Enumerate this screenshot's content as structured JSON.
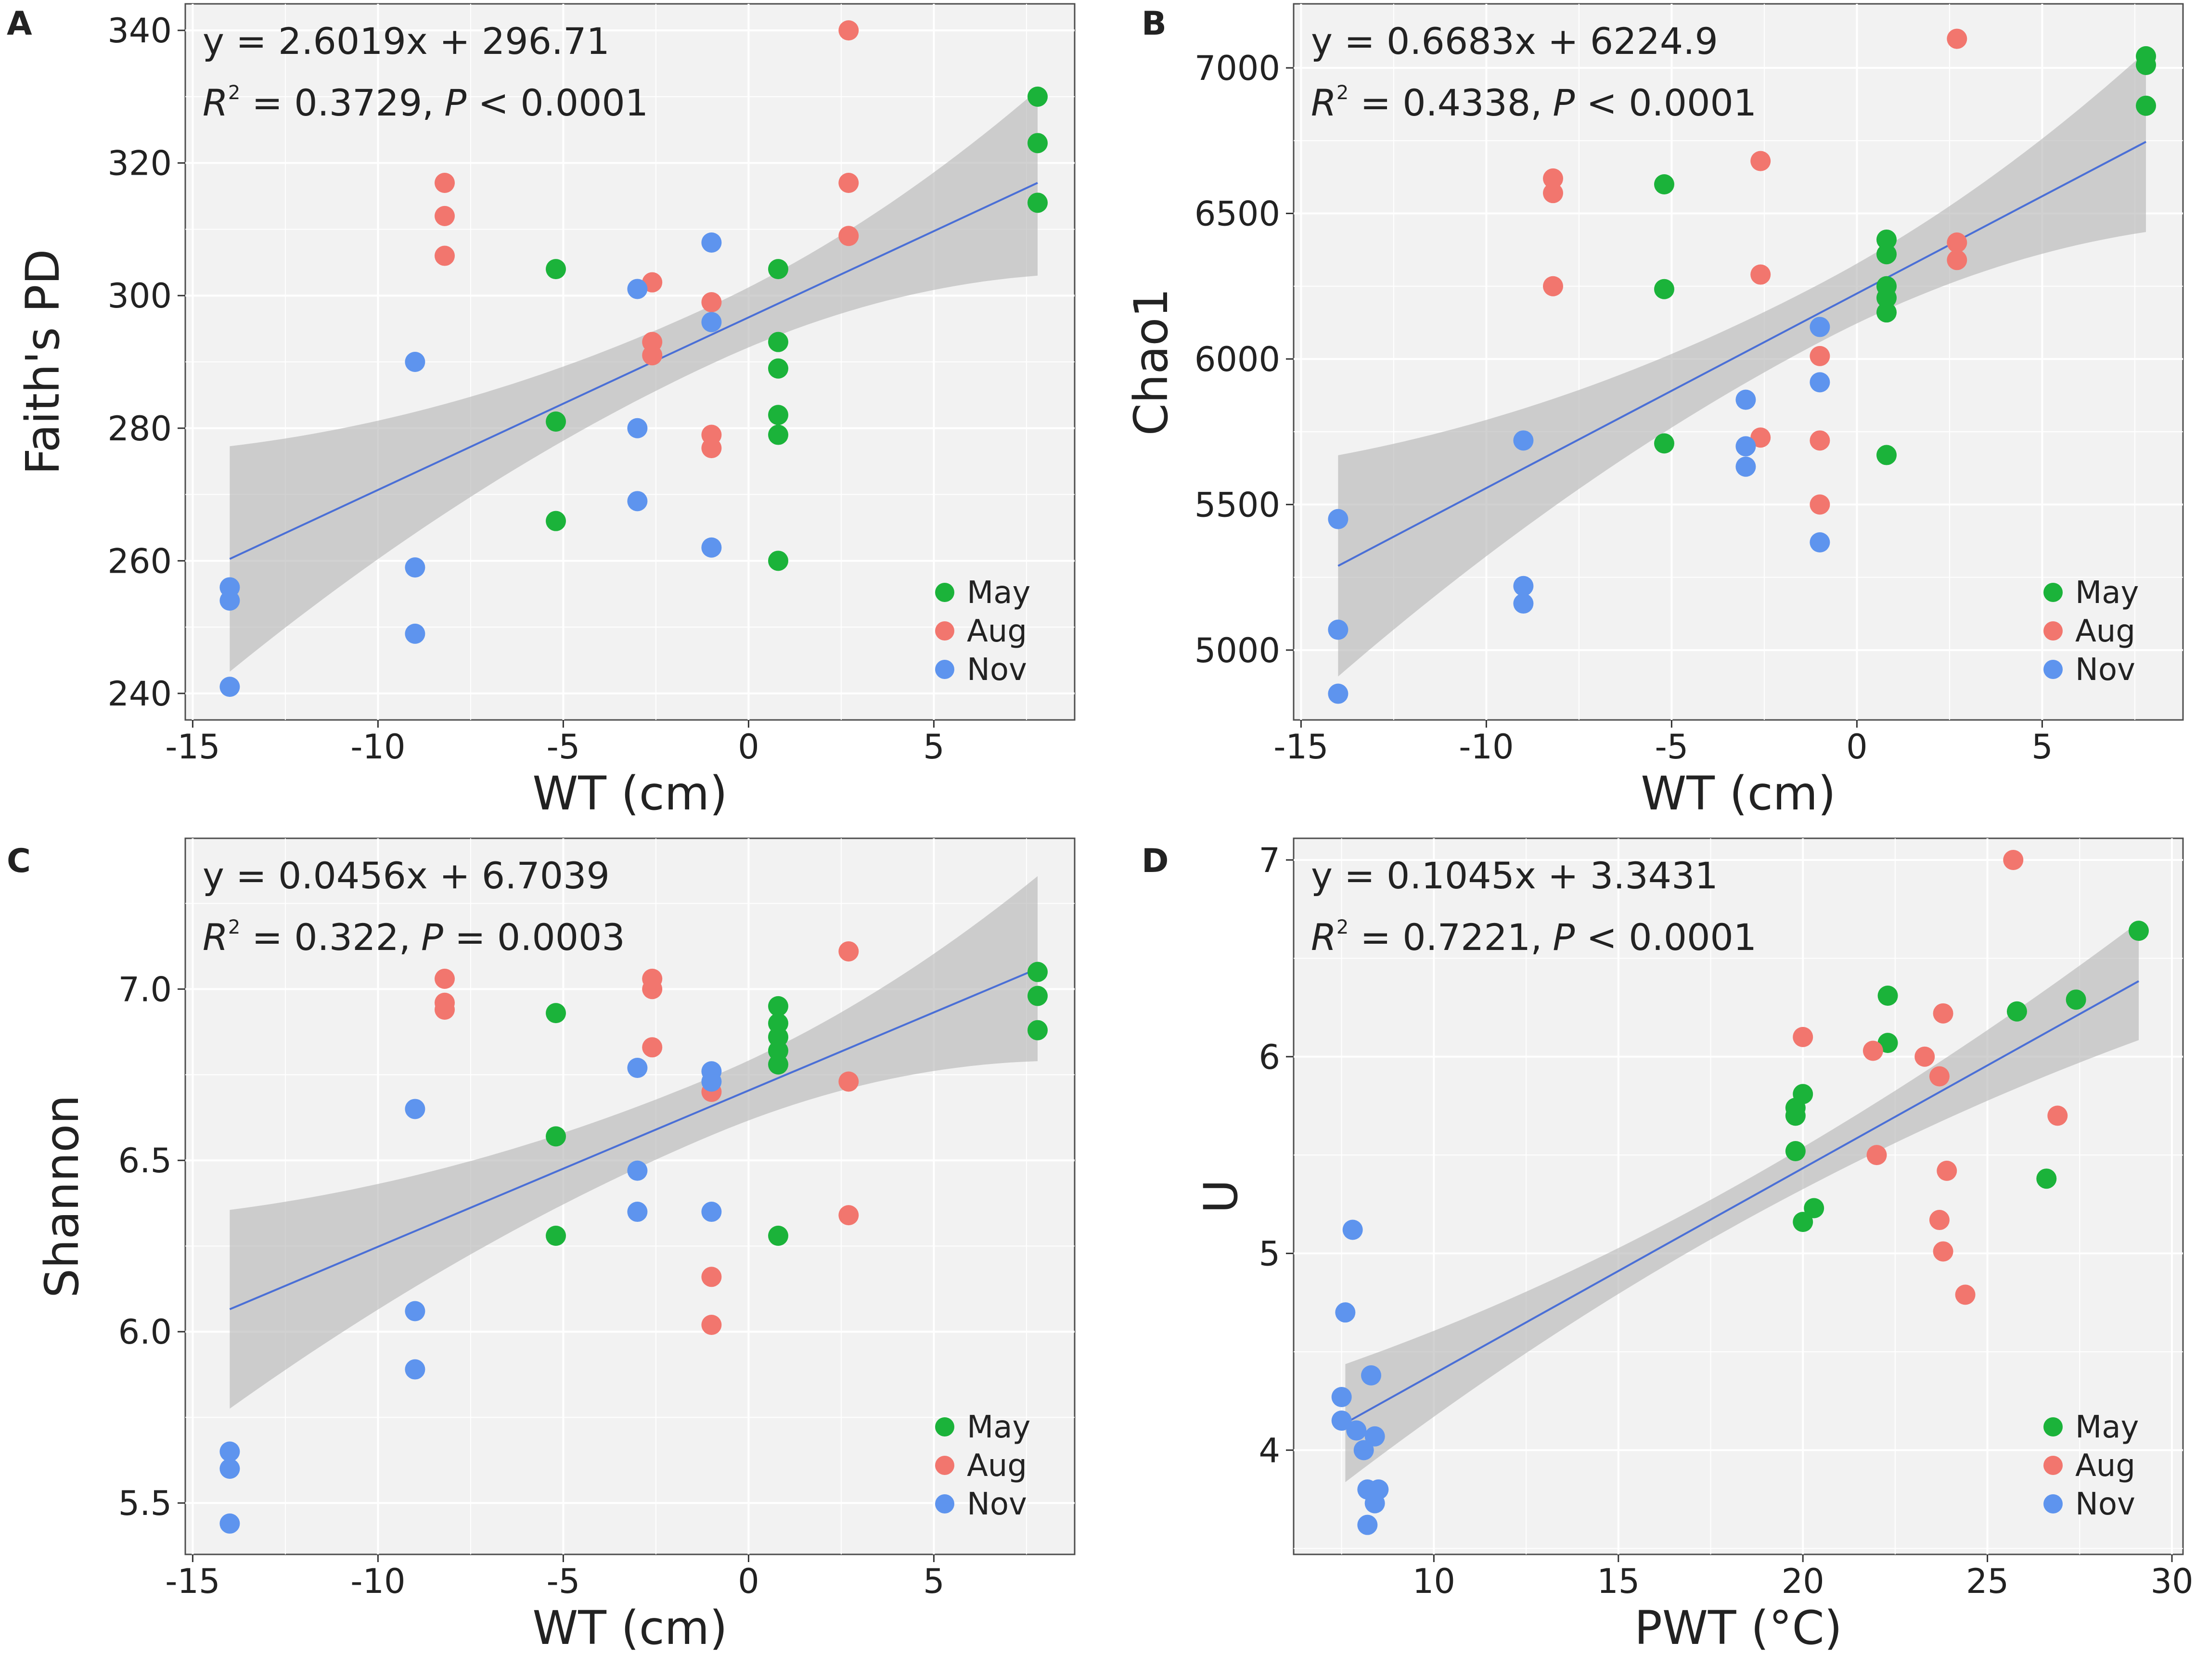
{
  "chart_data": [
    {
      "type": "scatter",
      "panel": "A",
      "xlabel": "WT (cm)",
      "ylabel": "Faith's PD",
      "xlim": [
        -15.2,
        8.8
      ],
      "ylim": [
        236,
        344
      ],
      "xticks": [
        -15,
        -10,
        -5,
        0,
        5
      ],
      "xtick_labels": [
        "-15",
        "-10",
        "-5",
        "0",
        "5"
      ],
      "yticks": [
        240,
        260,
        280,
        300,
        320,
        340
      ],
      "ytick_labels": [
        "240",
        "260",
        "280",
        "300",
        "320",
        "340"
      ],
      "equation": "y = 2.6019x + 296.71",
      "r2_prefix": "R",
      "r2_sup": "2",
      "r2_value": " =  0.3729,",
      "p_prefix": "P",
      "p_value": " < 0.0001",
      "fit": {
        "slope": 2.6019,
        "intercept": 296.71,
        "x_range": [
          -14,
          7.8
        ],
        "band_halfwidth_ends": [
          17,
          14
        ],
        "band_halfwidth_mid": 4.4,
        "band_mid_x": -1
      },
      "legend_position": "bottom-right",
      "series": [
        {
          "name": "May",
          "color": "#1BB33A",
          "points": [
            [
              -5.2,
              304
            ],
            [
              -5.2,
              281
            ],
            [
              -5.2,
              266
            ],
            [
              0.8,
              304
            ],
            [
              0.8,
              293
            ],
            [
              0.8,
              289
            ],
            [
              0.8,
              282
            ],
            [
              0.8,
              279
            ],
            [
              0.8,
              260
            ],
            [
              7.8,
              330
            ],
            [
              7.8,
              323
            ],
            [
              7.8,
              314
            ]
          ]
        },
        {
          "name": "Aug",
          "color": "#F2766E",
          "points": [
            [
              -8.2,
              317
            ],
            [
              -8.2,
              312
            ],
            [
              -8.2,
              306
            ],
            [
              -2.6,
              302
            ],
            [
              -2.6,
              293
            ],
            [
              -2.6,
              291
            ],
            [
              -1,
              299
            ],
            [
              -1,
              279
            ],
            [
              -1,
              277
            ],
            [
              2.7,
              340
            ],
            [
              2.7,
              317
            ],
            [
              2.7,
              309
            ]
          ]
        },
        {
          "name": "Nov",
          "color": "#5E94EE",
          "points": [
            [
              -14,
              256
            ],
            [
              -14,
              254
            ],
            [
              -14,
              241
            ],
            [
              -9,
              290
            ],
            [
              -9,
              259
            ],
            [
              -9,
              249
            ],
            [
              -3,
              301
            ],
            [
              -3,
              280
            ],
            [
              -3,
              269
            ],
            [
              -1,
              308
            ],
            [
              -1,
              296
            ],
            [
              -1,
              262
            ]
          ]
        }
      ]
    },
    {
      "type": "scatter",
      "panel": "B",
      "xlabel": "WT (cm)",
      "ylabel": "Chao1",
      "xlim": [
        -15.2,
        8.8
      ],
      "ylim": [
        4760,
        7220
      ],
      "xticks": [
        -15,
        -10,
        -5,
        0,
        5
      ],
      "xtick_labels": [
        "-15",
        "-10",
        "-5",
        "0",
        "5"
      ],
      "yticks": [
        5000,
        5500,
        6000,
        6500,
        7000
      ],
      "ytick_labels": [
        "5000",
        "5500",
        "6000",
        "6500",
        "7000"
      ],
      "equation": "y = 0.6683x + 6224.9",
      "r2_prefix": "R",
      "r2_sup": "2",
      "r2_value": " =  0.4338,",
      "p_prefix": "P",
      "p_value": " < 0.0001",
      "fit": {
        "slope": 0.6683,
        "intercept": 6224.9,
        "slope_display_scale": 100,
        "x_range": [
          -14,
          7.8
        ],
        "band_halfwidth_ends": [
          380,
          310
        ],
        "band_halfwidth_mid": 100,
        "band_mid_x": -1
      },
      "legend_position": "bottom-right",
      "series": [
        {
          "name": "May",
          "color": "#1BB33A",
          "points": [
            [
              -5.2,
              6600
            ],
            [
              -5.2,
              6240
            ],
            [
              -5.2,
              5710
            ],
            [
              0.8,
              6410
            ],
            [
              0.8,
              6360
            ],
            [
              0.8,
              6250
            ],
            [
              0.8,
              6210
            ],
            [
              0.8,
              6160
            ],
            [
              0.8,
              5670
            ],
            [
              7.8,
              7040
            ],
            [
              7.8,
              7010
            ],
            [
              7.8,
              6870
            ]
          ]
        },
        {
          "name": "Aug",
          "color": "#F2766E",
          "points": [
            [
              -8.2,
              6620
            ],
            [
              -8.2,
              6570
            ],
            [
              -8.2,
              6250
            ],
            [
              -2.6,
              6680
            ],
            [
              -2.6,
              6290
            ],
            [
              -2.6,
              5730
            ],
            [
              -1,
              6010
            ],
            [
              -1,
              5720
            ],
            [
              -1,
              5500
            ],
            [
              2.7,
              7100
            ],
            [
              2.7,
              6400
            ],
            [
              2.7,
              6340
            ]
          ]
        },
        {
          "name": "Nov",
          "color": "#5E94EE",
          "points": [
            [
              -14,
              5450
            ],
            [
              -14,
              5070
            ],
            [
              -14,
              4850
            ],
            [
              -9,
              5720
            ],
            [
              -9,
              5220
            ],
            [
              -9,
              5160
            ],
            [
              -3,
              5860
            ],
            [
              -3,
              5700
            ],
            [
              -3,
              5630
            ],
            [
              -1,
              6110
            ],
            [
              -1,
              5920
            ],
            [
              -1,
              5370
            ]
          ]
        }
      ]
    },
    {
      "type": "scatter",
      "panel": "C",
      "xlabel": "WT (cm)",
      "ylabel": "Shannon",
      "xlim": [
        -15.2,
        8.8
      ],
      "ylim": [
        5.35,
        7.44
      ],
      "xticks": [
        -15,
        -10,
        -5,
        0,
        5
      ],
      "xtick_labels": [
        "-15",
        "-10",
        "-5",
        "0",
        "5"
      ],
      "yticks": [
        5.5,
        6.0,
        6.5,
        7.0
      ],
      "ytick_labels": [
        "5.5",
        "6.0",
        "6.5",
        "7.0"
      ],
      "equation": "y  =  0.0456x  +  6.7039",
      "r2_prefix": "R",
      "r2_sup": "2",
      "r2_value": " =  0.322,",
      "p_prefix": "P",
      "p_value": " = 0.0003",
      "fit": {
        "slope": 0.0456,
        "intercept": 6.7039,
        "x_range": [
          -14,
          7.8
        ],
        "band_halfwidth_ends": [
          0.29,
          0.27
        ],
        "band_halfwidth_mid": 0.085,
        "band_mid_x": -1
      },
      "legend_position": "bottom-right",
      "series": [
        {
          "name": "May",
          "color": "#1BB33A",
          "points": [
            [
              -5.2,
              6.93
            ],
            [
              -5.2,
              6.57
            ],
            [
              -5.2,
              6.28
            ],
            [
              0.8,
              6.95
            ],
            [
              0.8,
              6.9
            ],
            [
              0.8,
              6.86
            ],
            [
              0.8,
              6.82
            ],
            [
              0.8,
              6.78
            ],
            [
              0.8,
              6.28
            ],
            [
              7.8,
              7.05
            ],
            [
              7.8,
              6.98
            ],
            [
              7.8,
              6.88
            ]
          ]
        },
        {
          "name": "Aug",
          "color": "#F2766E",
          "points": [
            [
              -8.2,
              7.03
            ],
            [
              -8.2,
              6.96
            ],
            [
              -8.2,
              6.94
            ],
            [
              -2.6,
              7.03
            ],
            [
              -2.6,
              7.0
            ],
            [
              -2.6,
              6.83
            ],
            [
              -1,
              6.7
            ],
            [
              -1,
              6.16
            ],
            [
              -1,
              6.02
            ],
            [
              2.7,
              7.11
            ],
            [
              2.7,
              6.73
            ],
            [
              2.7,
              6.34
            ]
          ]
        },
        {
          "name": "Nov",
          "color": "#5E94EE",
          "points": [
            [
              -14,
              5.65
            ],
            [
              -14,
              5.6
            ],
            [
              -14,
              5.44
            ],
            [
              -9,
              6.65
            ],
            [
              -9,
              6.06
            ],
            [
              -9,
              5.89
            ],
            [
              -3,
              6.77
            ],
            [
              -3,
              6.47
            ],
            [
              -3,
              6.35
            ],
            [
              -1,
              6.76
            ],
            [
              -1,
              6.73
            ],
            [
              -1,
              6.35
            ]
          ]
        }
      ]
    },
    {
      "type": "scatter",
      "panel": "D",
      "xlabel": "PWT (°C)",
      "ylabel": "U",
      "xlim": [
        6.2,
        30.3
      ],
      "ylim": [
        3.47,
        7.11
      ],
      "xticks": [
        10,
        15,
        20,
        25,
        30
      ],
      "xtick_labels": [
        "10",
        "15",
        "20",
        "25",
        "30"
      ],
      "yticks": [
        4,
        5,
        6,
        7
      ],
      "ytick_labels": [
        "4",
        "5",
        "6",
        "7"
      ],
      "equation": "y  =  0.1045x  +  3.3431",
      "r2_prefix": "R",
      "r2_sup": "2",
      "r2_value": " =  0.7221,",
      "p_prefix": "P",
      "p_value": " < 0.0001",
      "fit": {
        "slope": 0.1045,
        "intercept": 3.3431,
        "x_range": [
          7.6,
          29.1
        ],
        "band_halfwidth_ends": [
          0.3,
          0.3
        ],
        "band_halfwidth_mid": 0.1,
        "band_mid_x": 18
      },
      "legend_position": "bottom-right",
      "series": [
        {
          "name": "May",
          "color": "#1BB33A",
          "points": [
            [
              19.8,
              5.74
            ],
            [
              19.8,
              5.7
            ],
            [
              19.8,
              5.52
            ],
            [
              20,
              5.81
            ],
            [
              20,
              5.16
            ],
            [
              20.3,
              5.23
            ],
            [
              22.3,
              6.31
            ],
            [
              22.3,
              6.07
            ],
            [
              25.8,
              6.23
            ],
            [
              26.6,
              5.38
            ],
            [
              27.4,
              6.29
            ],
            [
              29.1,
              6.64
            ]
          ]
        },
        {
          "name": "Aug",
          "color": "#F2766E",
          "points": [
            [
              20,
              6.1
            ],
            [
              21.9,
              6.03
            ],
            [
              22,
              5.5
            ],
            [
              23.3,
              6.0
            ],
            [
              23.7,
              5.9
            ],
            [
              23.8,
              6.22
            ],
            [
              23.7,
              5.17
            ],
            [
              23.8,
              5.01
            ],
            [
              23.9,
              5.42
            ],
            [
              24.4,
              4.79
            ],
            [
              25.7,
              7.0
            ],
            [
              26.9,
              5.7
            ]
          ]
        },
        {
          "name": "Nov",
          "color": "#5E94EE",
          "points": [
            [
              7.5,
              4.27
            ],
            [
              7.6,
              4.7
            ],
            [
              7.8,
              5.12
            ],
            [
              7.5,
              4.15
            ],
            [
              7.9,
              4.1
            ],
            [
              8.1,
              4.0
            ],
            [
              8.3,
              4.38
            ],
            [
              8.4,
              4.07
            ],
            [
              8.2,
              3.8
            ],
            [
              8.5,
              3.8
            ],
            [
              8.4,
              3.73
            ],
            [
              8.2,
              3.62
            ]
          ]
        }
      ]
    }
  ]
}
